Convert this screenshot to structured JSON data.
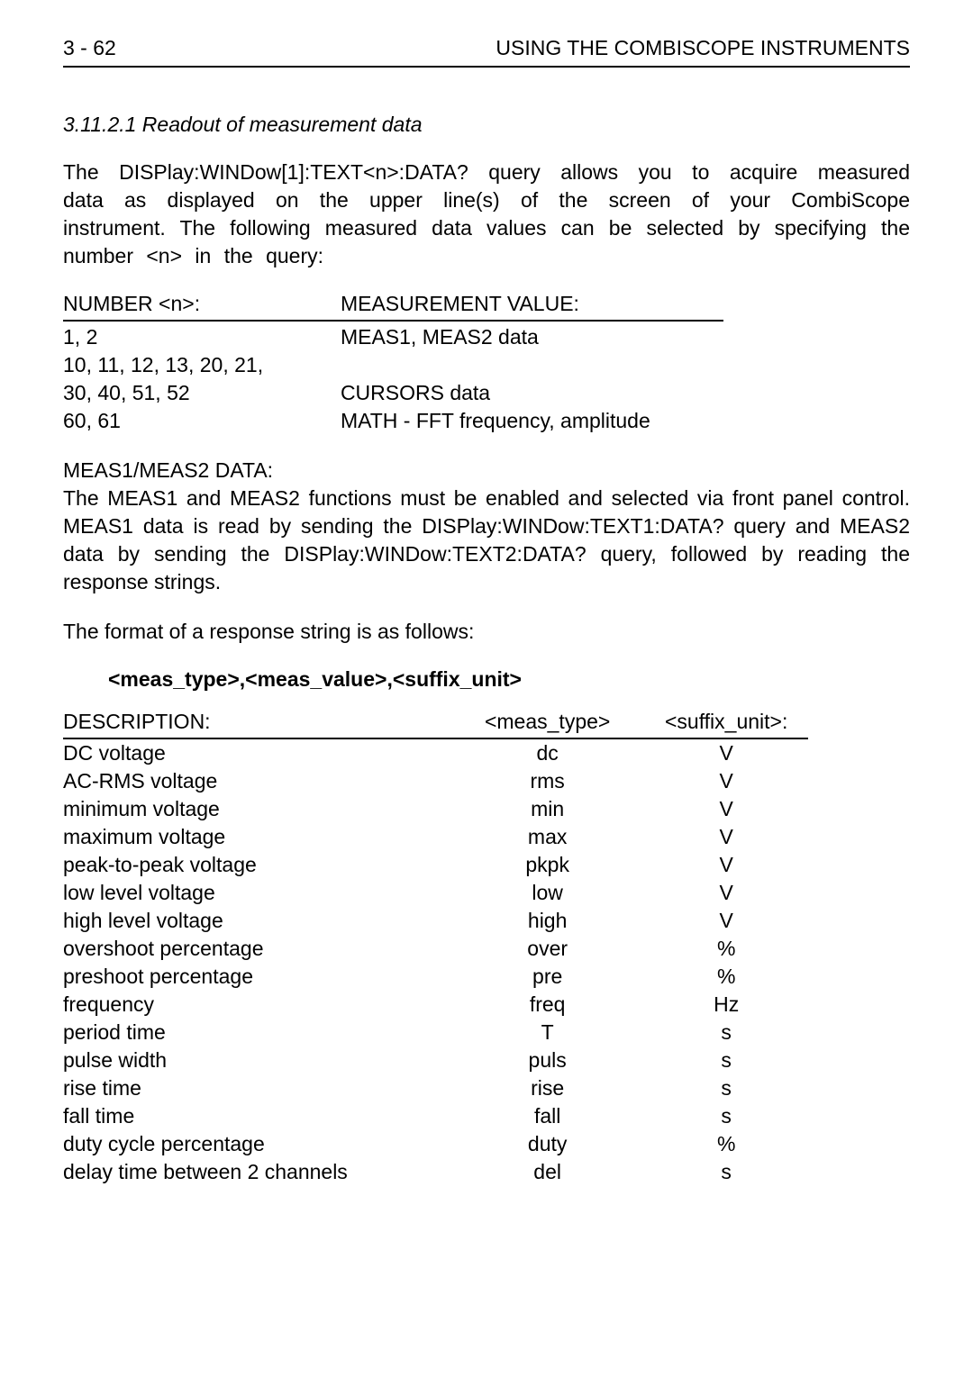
{
  "header": {
    "page_number": "3 - 62",
    "title": "USING THE COMBISCOPE INSTRUMENTS"
  },
  "section": {
    "number_title": "3.11.2.1    Readout of measurement data"
  },
  "intro_paragraph": "The DISPlay:WINDow[1]:TEXT<n>:DATA? query allows you to acquire measured data as displayed on the upper line(s) of the screen of your CombiScope instrument. The following measured data values can be selected by specifying the number <n> in the query:",
  "table1": {
    "headers": [
      "NUMBER <n>:",
      "MEASUREMENT VALUE:"
    ],
    "rows": [
      {
        "c1": "1, 2",
        "c2": "MEAS1, MEAS2 data"
      },
      {
        "c1": "10, 11, 12, 13, 20, 21,",
        "c2": ""
      },
      {
        "c1": "30, 40, 51, 52",
        "c2": "CURSORS data"
      },
      {
        "c1": "60, 61",
        "c2": "MATH - FFT frequency, amplitude"
      }
    ]
  },
  "meas_heading": "MEAS1/MEAS2 DATA:",
  "meas_paragraph": "The MEAS1 and MEAS2 functions must be enabled and selected via front panel control. MEAS1 data is read by sending the DISPlay:WINDow:TEXT1:DATA? query and MEAS2 data by sending the DISPlay:WINDow:TEXT2:DATA? query, followed by reading the response strings.",
  "format_intro": "The format of a response string is as follows:",
  "format_bold": "<meas_type>,<meas_value>,<suffix_unit>",
  "table2": {
    "headers": [
      "DESCRIPTION:",
      "<meas_type>",
      "<suffix_unit>:"
    ],
    "rows": [
      {
        "c1": "DC voltage",
        "c2": "dc",
        "c3": "V"
      },
      {
        "c1": "AC-RMS voltage",
        "c2": "rms",
        "c3": "V"
      },
      {
        "c1": "minimum voltage",
        "c2": "min",
        "c3": "V"
      },
      {
        "c1": "maximum voltage",
        "c2": "max",
        "c3": "V"
      },
      {
        "c1": "peak-to-peak voltage",
        "c2": "pkpk",
        "c3": "V"
      },
      {
        "c1": "low level voltage",
        "c2": "low",
        "c3": "V"
      },
      {
        "c1": "high level voltage",
        "c2": "high",
        "c3": "V"
      },
      {
        "c1": "overshoot percentage",
        "c2": "over",
        "c3": "%"
      },
      {
        "c1": "preshoot percentage",
        "c2": "pre",
        "c3": "%"
      },
      {
        "c1": "frequency",
        "c2": "freq",
        "c3": "Hz"
      },
      {
        "c1": "period time",
        "c2": "T",
        "c3": "s"
      },
      {
        "c1": "pulse width",
        "c2": "puls",
        "c3": "s"
      },
      {
        "c1": "rise time",
        "c2": "rise",
        "c3": "s"
      },
      {
        "c1": "fall time",
        "c2": "fall",
        "c3": "s"
      },
      {
        "c1": "duty cycle percentage",
        "c2": "duty",
        "c3": "%"
      },
      {
        "c1": "delay time between 2 channels",
        "c2": "del",
        "c3": "s"
      }
    ]
  }
}
